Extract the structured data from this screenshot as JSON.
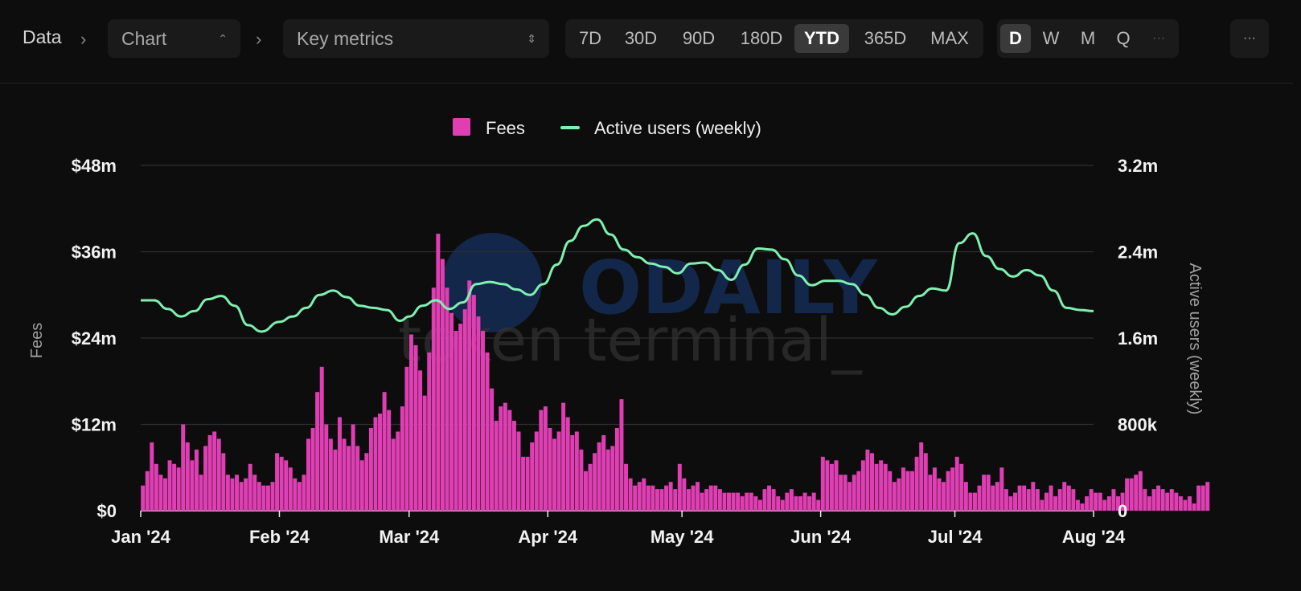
{
  "breadcrumb": {
    "root": "Data",
    "view_select": "Chart",
    "metric_select": "Key metrics"
  },
  "ranges": {
    "items": [
      "7D",
      "30D",
      "90D",
      "180D",
      "YTD",
      "365D",
      "MAX"
    ],
    "active": "YTD"
  },
  "granularity": {
    "items": [
      "D",
      "W",
      "M",
      "Q"
    ],
    "active": "D",
    "overflow": "···"
  },
  "more_label": "···",
  "colors": {
    "fees": "#e03fb4",
    "users": "#7ff0b0",
    "grid": "#2f2f2f",
    "background": "#0d0d0d"
  },
  "chart_data": {
    "type": "bar+line",
    "watermark": [
      "ODAILY",
      "token terminal_"
    ],
    "legend": [
      "Fees",
      "Active users (weekly)"
    ],
    "ylabel_left": "Fees",
    "ylabel_right": "Active users (weekly)",
    "y_left": {
      "min": 0,
      "max": 48000000,
      "ticks": [
        "$0",
        "$12m",
        "$24m",
        "$36m",
        "$48m"
      ]
    },
    "y_right": {
      "min": 0,
      "max": 3200000,
      "ticks": [
        "0",
        "800k",
        "1.6m",
        "2.4m",
        "3.2m"
      ]
    },
    "x_range": [
      "2024-01-01",
      "2024-08-01"
    ],
    "x_ticks": [
      {
        "label": "Jan '24",
        "date": "2024-01-01"
      },
      {
        "label": "Feb '24",
        "date": "2024-02-01"
      },
      {
        "label": "Mar '24",
        "date": "2024-03-01"
      },
      {
        "label": "Apr '24",
        "date": "2024-04-01"
      },
      {
        "label": "May '24",
        "date": "2024-05-01"
      },
      {
        "label": "Jun '24",
        "date": "2024-06-01"
      },
      {
        "label": "Jul '24",
        "date": "2024-07-01"
      },
      {
        "label": "Aug '24",
        "date": "2024-08-01"
      }
    ],
    "series": [
      {
        "name": "Fees",
        "type": "bar",
        "unit": "USD millions",
        "start_date": "2024-01-01",
        "interval": "daily",
        "values": [
          3.5,
          5.5,
          9.5,
          6.5,
          5.0,
          4.5,
          7.0,
          6.5,
          6.0,
          12.0,
          9.5,
          7.0,
          8.5,
          5.0,
          9.0,
          10.5,
          11.0,
          10.0,
          8.0,
          5.0,
          4.5,
          5.0,
          4.0,
          4.5,
          6.5,
          5.0,
          4.0,
          3.5,
          3.5,
          4.0,
          8.0,
          7.5,
          7.0,
          6.0,
          4.5,
          4.0,
          5.0,
          10.0,
          11.5,
          16.5,
          20.0,
          12.0,
          10.0,
          8.5,
          13.0,
          10.0,
          9.0,
          12.0,
          9.0,
          7.0,
          8.0,
          11.5,
          13.0,
          13.5,
          16.5,
          14.0,
          10.0,
          11.0,
          14.5,
          20.0,
          24.5,
          23.0,
          19.5,
          16.0,
          22.0,
          31.0,
          38.5,
          35.0,
          31.0,
          27.5,
          25.0,
          26.0,
          28.0,
          32.0,
          30.0,
          27.0,
          25.0,
          22.0,
          17.0,
          12.5,
          14.5,
          15.0,
          14.0,
          12.5,
          11.0,
          7.5,
          7.5,
          9.5,
          11.0,
          14.0,
          14.5,
          11.5,
          10.0,
          11.0,
          15.0,
          13.0,
          10.5,
          11.0,
          8.5,
          5.5,
          6.5,
          8.0,
          9.5,
          10.5,
          8.5,
          9.0,
          11.5,
          15.5,
          6.5,
          4.5,
          3.5,
          4.0,
          4.5,
          3.5,
          3.5,
          3.0,
          3.0,
          3.5,
          4.0,
          3.0,
          6.5,
          4.5,
          3.0,
          3.5,
          4.0,
          2.5,
          3.0,
          3.5,
          3.5,
          3.0,
          2.5,
          2.5,
          2.5,
          2.5,
          2.0,
          2.5,
          2.5,
          2.0,
          1.5,
          3.0,
          3.5,
          3.0,
          2.0,
          1.5,
          2.5,
          3.0,
          2.0,
          2.0,
          2.5,
          2.0,
          2.5,
          1.5,
          7.5,
          7.0,
          6.5,
          7.0,
          5.0,
          5.0,
          4.0,
          5.0,
          5.5,
          7.0,
          8.5,
          8.0,
          6.5,
          7.0,
          6.5,
          5.5,
          4.0,
          4.5,
          6.0,
          5.5,
          5.5,
          7.5,
          9.5,
          8.0,
          5.0,
          6.0,
          4.5,
          4.0,
          5.5,
          6.0,
          7.5,
          6.5,
          4.0,
          2.5,
          2.5,
          3.5,
          5.0,
          5.0,
          3.5,
          4.0,
          6.0,
          3.0,
          2.0,
          2.5,
          3.5,
          3.5,
          3.0,
          4.0,
          3.0,
          1.5,
          2.5,
          3.5,
          2.0,
          3.0,
          4.0,
          3.5,
          3.0,
          1.5,
          1.0,
          2.0,
          3.0,
          2.5,
          2.5,
          1.5,
          2.0,
          3.0,
          2.0,
          2.5,
          4.5,
          4.5,
          5.0,
          5.5,
          3.0,
          2.0,
          3.0,
          3.5,
          3.0,
          2.5,
          3.0,
          2.5,
          2.0,
          1.5,
          2.0,
          1.0,
          3.5,
          3.5,
          4.0
        ]
      },
      {
        "name": "Active users (weekly)",
        "type": "line",
        "unit": "users",
        "points": [
          [
            "2024-01-01",
            1950000
          ],
          [
            "2024-01-04",
            1950000
          ],
          [
            "2024-01-07",
            1870000
          ],
          [
            "2024-01-10",
            1800000
          ],
          [
            "2024-01-13",
            1850000
          ],
          [
            "2024-01-16",
            1960000
          ],
          [
            "2024-01-19",
            1990000
          ],
          [
            "2024-01-22",
            1900000
          ],
          [
            "2024-01-25",
            1720000
          ],
          [
            "2024-01-28",
            1660000
          ],
          [
            "2024-02-01",
            1750000
          ],
          [
            "2024-02-04",
            1800000
          ],
          [
            "2024-02-07",
            1880000
          ],
          [
            "2024-02-10",
            2000000
          ],
          [
            "2024-02-13",
            2040000
          ],
          [
            "2024-02-16",
            1980000
          ],
          [
            "2024-02-19",
            1900000
          ],
          [
            "2024-02-22",
            1880000
          ],
          [
            "2024-02-25",
            1860000
          ],
          [
            "2024-02-28",
            1760000
          ],
          [
            "2024-03-01",
            1800000
          ],
          [
            "2024-03-04",
            1900000
          ],
          [
            "2024-03-07",
            1950000
          ],
          [
            "2024-03-10",
            1870000
          ],
          [
            "2024-03-13",
            1930000
          ],
          [
            "2024-03-16",
            2100000
          ],
          [
            "2024-03-19",
            2120000
          ],
          [
            "2024-03-22",
            2100000
          ],
          [
            "2024-03-25",
            2050000
          ],
          [
            "2024-03-28",
            2000000
          ],
          [
            "2024-03-31",
            2100000
          ],
          [
            "2024-04-03",
            2280000
          ],
          [
            "2024-04-06",
            2500000
          ],
          [
            "2024-04-09",
            2640000
          ],
          [
            "2024-04-12",
            2700000
          ],
          [
            "2024-04-15",
            2560000
          ],
          [
            "2024-04-18",
            2420000
          ],
          [
            "2024-04-21",
            2350000
          ],
          [
            "2024-04-24",
            2290000
          ],
          [
            "2024-04-27",
            2260000
          ],
          [
            "2024-04-30",
            2200000
          ],
          [
            "2024-05-03",
            2290000
          ],
          [
            "2024-05-06",
            2300000
          ],
          [
            "2024-05-09",
            2230000
          ],
          [
            "2024-05-12",
            2140000
          ],
          [
            "2024-05-15",
            2280000
          ],
          [
            "2024-05-18",
            2430000
          ],
          [
            "2024-05-21",
            2420000
          ],
          [
            "2024-05-24",
            2330000
          ],
          [
            "2024-05-27",
            2180000
          ],
          [
            "2024-05-30",
            2090000
          ],
          [
            "2024-06-02",
            2130000
          ],
          [
            "2024-06-05",
            2130000
          ],
          [
            "2024-06-08",
            2100000
          ],
          [
            "2024-06-11",
            2000000
          ],
          [
            "2024-06-14",
            1880000
          ],
          [
            "2024-06-17",
            1820000
          ],
          [
            "2024-06-20",
            1890000
          ],
          [
            "2024-06-23",
            1990000
          ],
          [
            "2024-06-26",
            2060000
          ],
          [
            "2024-06-29",
            2040000
          ],
          [
            "2024-07-02",
            2480000
          ],
          [
            "2024-07-05",
            2570000
          ],
          [
            "2024-07-08",
            2360000
          ],
          [
            "2024-07-11",
            2240000
          ],
          [
            "2024-07-14",
            2170000
          ],
          [
            "2024-07-17",
            2230000
          ],
          [
            "2024-07-20",
            2180000
          ],
          [
            "2024-07-23",
            2040000
          ],
          [
            "2024-07-26",
            1880000
          ],
          [
            "2024-07-29",
            1860000
          ],
          [
            "2024-08-01",
            1850000
          ]
        ]
      }
    ]
  }
}
